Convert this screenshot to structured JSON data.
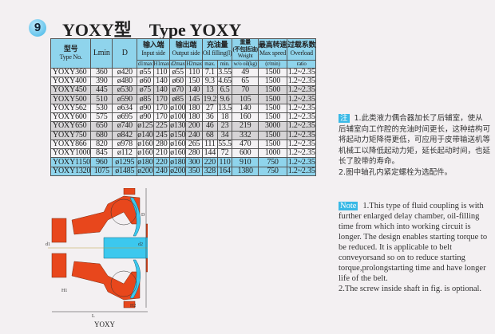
{
  "badge": "9",
  "title": "YOXY型    Type YOXY",
  "table": {
    "headers": {
      "type_cn": "型号",
      "type_en": "Type No.",
      "lmin": "Lmin",
      "d": "D",
      "input_cn": "输入端",
      "input_en": "Input side",
      "output_cn": "输出端",
      "output_en": "Output side",
      "oil_cn": "充油量",
      "oil_en": "Oil filling(l)",
      "weight_cn": "重量",
      "weight_cn2": "(不包括油)",
      "weight_en": "Weight",
      "speed_cn": "最高转速",
      "speed_en": "Max speed",
      "overload_cn": "过载系数",
      "overload_en": "Overload",
      "sub": [
        "d1max",
        "H1max",
        "d2max",
        "H2max",
        "max.",
        "min.",
        "w/o oil(kg)",
        "(r/min)",
        "ratio"
      ]
    },
    "rows": [
      [
        "YOXY360",
        "360",
        "ø420",
        "ø55",
        "110",
        "ø55",
        "110",
        "7.1",
        "3.55",
        "49",
        "1500",
        "1.2~2.35"
      ],
      [
        "YOXY400",
        "390",
        "ø480",
        "ø60",
        "140",
        "ø60",
        "150",
        "9.3",
        "4.65",
        "65",
        "1500",
        "1.2~2.35"
      ],
      [
        "YOXY450",
        "445",
        "ø530",
        "ø75",
        "140",
        "ø70",
        "140",
        "13",
        "6.5",
        "70",
        "1500",
        "1.2~2.35"
      ],
      [
        "YOXY500",
        "510",
        "ø590",
        "ø85",
        "170",
        "ø85",
        "145",
        "19.2",
        "9.6",
        "105",
        "1500",
        "1.2~2.35"
      ],
      [
        "YOXY562",
        "530",
        "ø634",
        "ø90",
        "170",
        "ø100",
        "180",
        "27",
        "13.5",
        "140",
        "1500",
        "1.2~2.35"
      ],
      [
        "YOXY600",
        "575",
        "ø695",
        "ø90",
        "170",
        "ø100",
        "180",
        "36",
        "18",
        "160",
        "1500",
        "1.2~2.35"
      ],
      [
        "YOXY650",
        "650",
        "ø740",
        "ø125",
        "225",
        "ø130",
        "200",
        "46",
        "23",
        "219",
        "3000",
        "1.2~2.35"
      ],
      [
        "YOXY750",
        "680",
        "ø842",
        "ø140",
        "245",
        "ø150",
        "240",
        "68",
        "34",
        "332",
        "1500",
        "1.2~2.35"
      ],
      [
        "YOXY866",
        "820",
        "ø978",
        "ø160",
        "280",
        "ø160",
        "265",
        "111",
        "55.5",
        "470",
        "1500",
        "1.2~2.35"
      ],
      [
        "YOXY1000",
        "845",
        "ø112",
        "ø160",
        "210",
        "ø160",
        "280",
        "144",
        "72",
        "600",
        "1000",
        "1.2~2.35"
      ],
      [
        "YOXY1150",
        "960",
        "ø1295",
        "ø180",
        "220",
        "ø180",
        "300",
        "220",
        "110",
        "910",
        "750",
        "1.2~2.35"
      ],
      [
        "YOXY1320",
        "1075",
        "ø1485",
        "ø200",
        "240",
        "ø200",
        "350",
        "328",
        "164",
        "1380",
        "750",
        "1.2~2.35"
      ]
    ]
  },
  "note_cn": {
    "tag": "注",
    "p1": "1.此类液力偶合器加长了后辅室，使从后辅室向工作腔的充油时间更长，这种结构可将起动力矩降得更低，可应用于皮带输送机等机械工以降低起动力矩，延长起动时间，也延长了胶带的寿命。",
    "p2": "2.图中轴孔内紧定螺栓为选配件。"
  },
  "note_en": {
    "tag": "Note",
    "p1": "1.This type of fluid coupling is with further enlarged delay chamber, oil-filling time from which into working circuit is longer. The design enables starting torque to be reduced. It is applicable to belt conveyorsand so on to reduce starting torque,prolongstarting time and have longer life of the belt.",
    "p2": "2.The screw inside shaft in fig. is optional."
  },
  "drawing": {
    "labels": {
      "d1": "d1",
      "d2": "d2",
      "D": "D",
      "H1": "H1",
      "H2": "H2",
      "L": "L"
    },
    "caption": "YOXY"
  },
  "colors": {
    "header": "#8fd4ec",
    "housing": "#e8471c",
    "runner": "#3cc8ee"
  }
}
